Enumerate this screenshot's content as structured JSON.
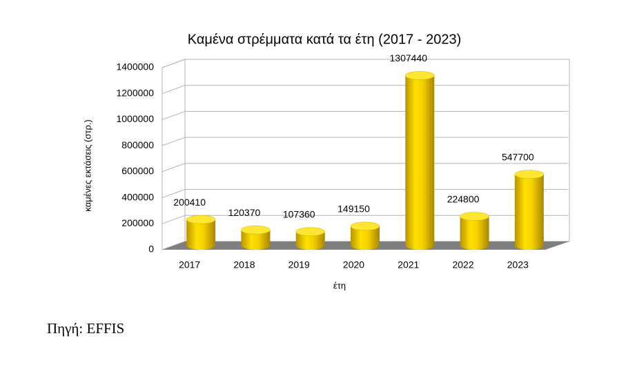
{
  "chart_data": {
    "type": "bar3d",
    "title": "Καμένα στρέμματα κατά τα έτη (2017 - 2023)",
    "y_label": "καμένες εκτάσεις (στρ.)",
    "x_label": "έτη",
    "categories": [
      "2017",
      "2018",
      "2019",
      "2020",
      "2021",
      "2022",
      "2023"
    ],
    "values": [
      200410,
      120370,
      107360,
      149150,
      1307440,
      224800,
      547700
    ],
    "color": "#f5d000",
    "ylim": [
      0,
      1400000
    ],
    "yticks": [
      0,
      200000,
      400000,
      600000,
      800000,
      1000000,
      1200000,
      1400000
    ],
    "grid": true
  },
  "source": "Πηγή: EFFIS"
}
